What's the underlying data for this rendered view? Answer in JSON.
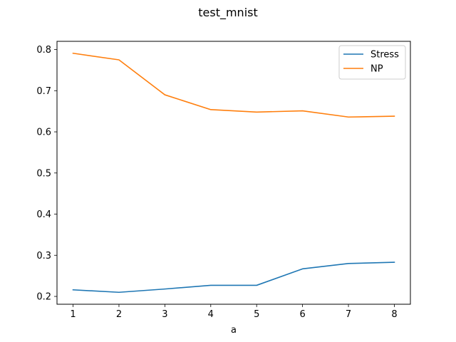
{
  "chart_data": {
    "type": "line",
    "title": "test_mnist",
    "xlabel": "a",
    "ylabel": "",
    "x": [
      1,
      2,
      3,
      4,
      5,
      6,
      7,
      8
    ],
    "xticks": [
      "1",
      "2",
      "3",
      "4",
      "5",
      "6",
      "7",
      "8"
    ],
    "yticks": [
      0.2,
      0.3,
      0.4,
      0.5,
      0.6,
      0.7,
      0.8
    ],
    "ytick_labels": [
      "0.2",
      "0.3",
      "0.4",
      "0.5",
      "0.6",
      "0.7",
      "0.8"
    ],
    "xlim": [
      0.65,
      8.35
    ],
    "ylim": [
      0.181,
      0.82
    ],
    "grid": false,
    "legend_position": "top-right",
    "series": [
      {
        "name": "Stress",
        "color": "#1f77b4",
        "values": [
          0.216,
          0.21,
          0.218,
          0.227,
          0.227,
          0.267,
          0.28,
          0.283
        ]
      },
      {
        "name": "NP",
        "color": "#ff7f0e",
        "values": [
          0.791,
          0.775,
          0.69,
          0.654,
          0.648,
          0.651,
          0.636,
          0.638
        ]
      }
    ]
  }
}
